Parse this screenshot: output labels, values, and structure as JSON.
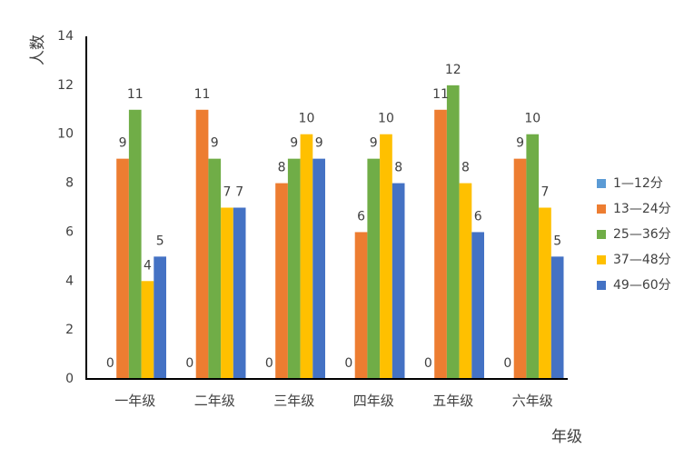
{
  "chart_data": {
    "type": "bar",
    "title": "",
    "xlabel": "年级",
    "ylabel": "人数",
    "ylim": [
      0,
      14
    ],
    "yticks": [
      0,
      2,
      4,
      6,
      8,
      10,
      12,
      14
    ],
    "grid": false,
    "legend_position": "right",
    "categories": [
      "一年级",
      "二年级",
      "三年级",
      "四年级",
      "五年级",
      "六年级"
    ],
    "series": [
      {
        "name": "1—12分",
        "color": "#5B9BD5",
        "values": [
          0,
          0,
          0,
          0,
          0,
          0
        ]
      },
      {
        "name": "13—24分",
        "color": "#ED7D31",
        "values": [
          9,
          11,
          8,
          6,
          11,
          9
        ]
      },
      {
        "name": "25—36分",
        "color": "#70AD47",
        "values": [
          11,
          9,
          9,
          9,
          12,
          10
        ]
      },
      {
        "name": "37—48分",
        "color": "#FFC000",
        "values": [
          4,
          7,
          10,
          10,
          8,
          7
        ]
      },
      {
        "name": "49—60分",
        "color": "#4472C4",
        "values": [
          5,
          7,
          9,
          8,
          6,
          5
        ]
      }
    ]
  }
}
